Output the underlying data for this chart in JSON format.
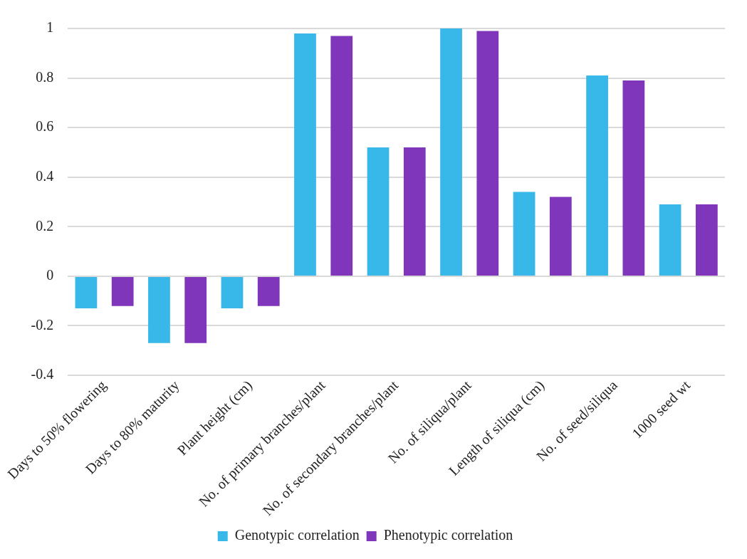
{
  "chart_data": {
    "type": "bar",
    "categories": [
      "Days to 50% flowering",
      "Days to 80% maturity",
      "Plant height (cm)",
      "No. of primary branches/plant",
      "No. of secondary branches/plant",
      "No. of siliqua/plant",
      "Length of siliqua (cm)",
      "No. of seed/siliqua",
      "1000 seed wt"
    ],
    "series": [
      {
        "name": "Genotypic correlation",
        "color": "#37b8e8",
        "values": [
          -0.13,
          -0.27,
          -0.13,
          0.98,
          0.52,
          1.0,
          0.34,
          0.81,
          0.29
        ]
      },
      {
        "name": "Phenotypic correlation",
        "color": "#7f36bb",
        "values": [
          -0.12,
          -0.27,
          -0.12,
          0.97,
          0.52,
          0.99,
          0.32,
          0.79,
          0.29
        ]
      }
    ],
    "ylim": [
      -0.4,
      1
    ],
    "yticks": [
      -0.4,
      -0.2,
      0,
      0.2,
      0.4,
      0.6,
      0.8,
      1
    ],
    "grid": "y",
    "legend": "bottom"
  }
}
